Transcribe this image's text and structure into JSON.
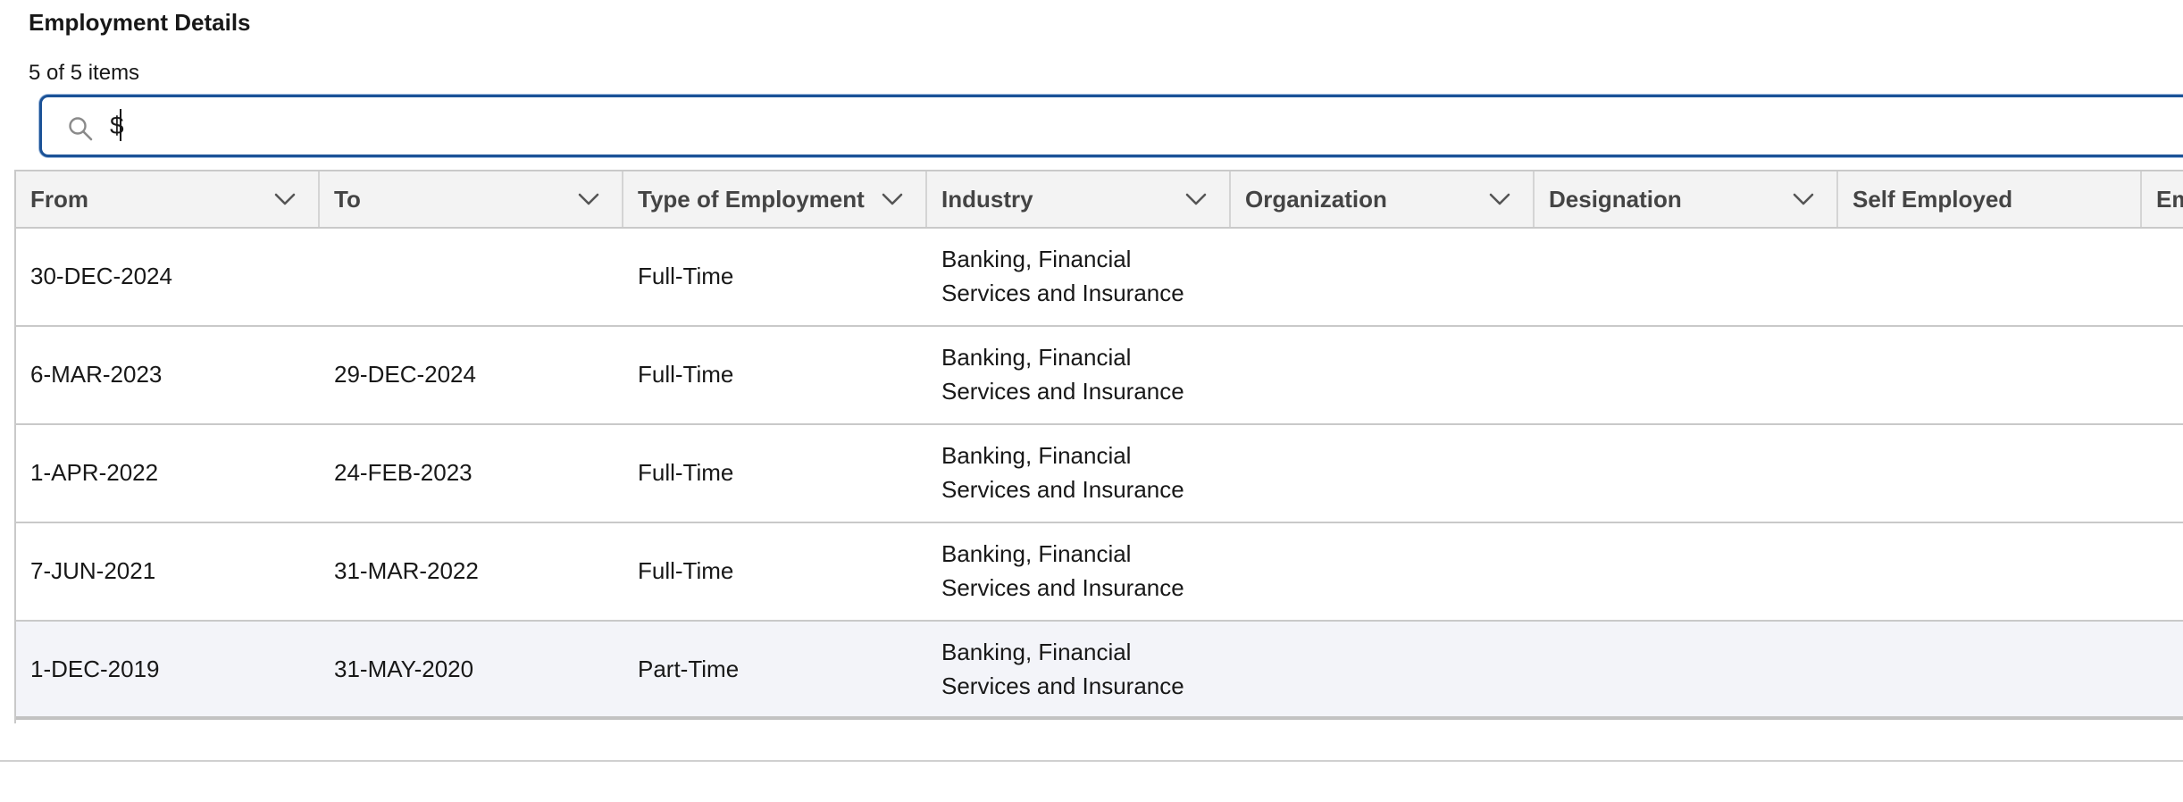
{
  "card": {
    "title": "Employment Details",
    "count": "5 of 5 items"
  },
  "search": {
    "value": "$",
    "placeholder": ""
  },
  "table": {
    "columns": [
      {
        "label": "From"
      },
      {
        "label": "To"
      },
      {
        "label": "Type of Employment"
      },
      {
        "label": "Industry"
      },
      {
        "label": "Organization"
      },
      {
        "label": "Designation"
      },
      {
        "label": "Self Employed"
      },
      {
        "label": "Em"
      }
    ],
    "rows": [
      {
        "from": "30-DEC-2024",
        "to": "",
        "type": "Full-Time",
        "industry_l1": "Banking, Financial",
        "industry_l2": "Services and Insurance"
      },
      {
        "from": "6-MAR-2023",
        "to": "29-DEC-2024",
        "type": "Full-Time",
        "industry_l1": "Banking, Financial",
        "industry_l2": "Services and Insurance"
      },
      {
        "from": "1-APR-2022",
        "to": "24-FEB-2023",
        "type": "Full-Time",
        "industry_l1": "Banking, Financial",
        "industry_l2": "Services and Insurance"
      },
      {
        "from": "7-JUN-2021",
        "to": "31-MAR-2022",
        "type": "Full-Time",
        "industry_l1": "Banking, Financial",
        "industry_l2": "Services and Insurance"
      },
      {
        "from": "1-DEC-2019",
        "to": "31-MAY-2020",
        "type": "Part-Time",
        "industry_l1": "Banking, Financial",
        "industry_l2": "Services and Insurance"
      }
    ]
  },
  "colors": {
    "focus_border": "#1b5297",
    "header_bg": "#f3f3f3",
    "highlight_row_bg": "#f3f4f9"
  },
  "icons": {
    "search": "search-icon",
    "sort": "chevron-down-icon"
  }
}
